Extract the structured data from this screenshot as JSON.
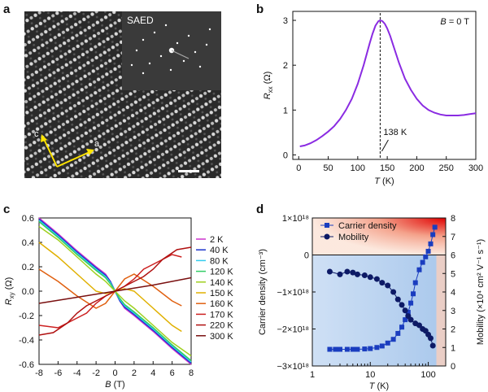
{
  "panels": {
    "a": "a",
    "b": "b",
    "c": "c",
    "d": "d"
  },
  "panel_a": {
    "inset_label": "SAED",
    "arrow_labels": [
      "c",
      "a"
    ]
  },
  "chart_data": [
    {
      "id": "b",
      "type": "line",
      "xlabel_italic": "T",
      "xlabel_rest": " (K)",
      "ylabel_italic": "R",
      "ylabel_sub": "xx",
      "ylabel_rest": " (Ω)",
      "xlim": [
        -10,
        300
      ],
      "ylim": [
        -0.1,
        3.2
      ],
      "xticks": [
        0,
        50,
        100,
        150,
        200,
        250,
        300
      ],
      "yticks": [
        0,
        1,
        2,
        3
      ],
      "annotation_b_italic": "B",
      "annotation_b_rest": " = 0 T",
      "annotation_t": "138 K",
      "vline_x": 138,
      "color": "#8a2be2",
      "series": [
        {
          "name": "Rxx",
          "x": [
            2,
            10,
            20,
            30,
            40,
            50,
            60,
            70,
            80,
            90,
            100,
            110,
            120,
            125,
            130,
            135,
            138,
            142,
            146,
            150,
            155,
            160,
            170,
            180,
            190,
            200,
            210,
            220,
            230,
            240,
            250,
            260,
            270,
            280,
            290,
            300
          ],
          "y": [
            0.19,
            0.21,
            0.26,
            0.33,
            0.42,
            0.52,
            0.64,
            0.8,
            1.0,
            1.25,
            1.58,
            2.0,
            2.48,
            2.7,
            2.88,
            2.98,
            3.0,
            2.98,
            2.92,
            2.82,
            2.65,
            2.45,
            2.05,
            1.7,
            1.45,
            1.25,
            1.1,
            1.0,
            0.94,
            0.9,
            0.88,
            0.88,
            0.88,
            0.89,
            0.91,
            0.93
          ]
        }
      ]
    },
    {
      "id": "c",
      "type": "line",
      "xlabel_italic": "B",
      "xlabel_rest": " (T)",
      "ylabel_italic": "R",
      "ylabel_sub": "xy",
      "ylabel_rest": " (Ω)",
      "xlim": [
        -8,
        8
      ],
      "ylim": [
        -0.6,
        0.6
      ],
      "xticks": [
        -8,
        -6,
        -4,
        -2,
        0,
        2,
        4,
        6,
        8
      ],
      "ytick_labels": [
        "0.6",
        "0.4",
        "0.2",
        "0.0",
        "-0.2",
        "-0.4",
        "-0.6"
      ],
      "series": [
        {
          "name": "2 K",
          "color": "#cc33cc",
          "x": [
            -8,
            -6,
            -4,
            -2,
            -1,
            -0.5,
            0,
            0.5,
            1,
            2,
            4,
            6,
            8
          ],
          "y": [
            0.6,
            0.47,
            0.33,
            0.2,
            0.14,
            0.08,
            0.0,
            -0.08,
            -0.14,
            -0.2,
            -0.33,
            -0.47,
            -0.6
          ]
        },
        {
          "name": "40 K",
          "color": "#1a33cc",
          "x": [
            -8,
            -6,
            -4,
            -2,
            -1,
            -0.5,
            0,
            0.5,
            1,
            2,
            4,
            6,
            8
          ],
          "y": [
            0.59,
            0.46,
            0.32,
            0.19,
            0.13,
            0.08,
            0.0,
            -0.08,
            -0.13,
            -0.19,
            -0.32,
            -0.46,
            -0.59
          ]
        },
        {
          "name": "80 K",
          "color": "#33ccee",
          "x": [
            -8,
            -6,
            -4,
            -2,
            -1,
            -0.5,
            0,
            0.5,
            1,
            2,
            4,
            6,
            8
          ],
          "y": [
            0.58,
            0.45,
            0.31,
            0.18,
            0.12,
            0.07,
            0.0,
            -0.07,
            -0.12,
            -0.18,
            -0.31,
            -0.45,
            -0.58
          ]
        },
        {
          "name": "120 K",
          "color": "#33cc66",
          "x": [
            -8,
            -6,
            -4,
            -2,
            -1,
            -0.5,
            0,
            0.5,
            1,
            2,
            4,
            6,
            8
          ],
          "y": [
            0.57,
            0.44,
            0.3,
            0.17,
            0.11,
            0.06,
            0.0,
            -0.06,
            -0.11,
            -0.17,
            -0.3,
            -0.44,
            -0.57
          ]
        },
        {
          "name": "140 K",
          "color": "#a0d020",
          "x": [
            -8,
            -6,
            -4,
            -2,
            -1,
            0,
            1,
            2,
            4,
            6,
            8
          ],
          "y": [
            0.53,
            0.42,
            0.28,
            0.14,
            0.08,
            0.0,
            -0.08,
            -0.14,
            -0.28,
            -0.42,
            -0.53
          ]
        },
        {
          "name": "150 K",
          "color": "#e0b000",
          "x": [
            -8,
            -6,
            -4,
            -2,
            -1,
            0,
            1,
            2,
            4,
            6,
            7
          ],
          "y": [
            0.4,
            0.28,
            0.14,
            0.0,
            -0.02,
            0.0,
            0.02,
            0.0,
            -0.14,
            -0.28,
            -0.33
          ]
        },
        {
          "name": "160 K",
          "color": "#e06010",
          "x": [
            -8,
            -6,
            -4,
            -2,
            -1,
            0,
            1,
            2,
            4,
            6,
            7
          ],
          "y": [
            0.18,
            0.08,
            -0.04,
            -0.14,
            -0.1,
            0.0,
            0.1,
            0.14,
            0.04,
            -0.08,
            -0.12
          ]
        },
        {
          "name": "170 K",
          "color": "#cc2020",
          "x": [
            -8,
            -6,
            -4,
            -3,
            -2,
            -1,
            0,
            1,
            2,
            3,
            4,
            6,
            7
          ],
          "y": [
            -0.28,
            -0.3,
            -0.22,
            -0.18,
            -0.1,
            -0.04,
            0.0,
            0.04,
            0.1,
            0.18,
            0.22,
            0.3,
            0.28
          ]
        },
        {
          "name": "220 K",
          "color": "#b01010",
          "x": [
            -8,
            -6.5,
            -5,
            -4,
            -3,
            -2,
            -1,
            0,
            1,
            2,
            3,
            4,
            5,
            6.5,
            8
          ],
          "y": [
            -0.36,
            -0.34,
            -0.26,
            -0.18,
            -0.12,
            -0.08,
            -0.04,
            0.0,
            0.04,
            0.08,
            0.12,
            0.18,
            0.26,
            0.34,
            0.36
          ]
        },
        {
          "name": "300 K",
          "color": "#7a1010",
          "x": [
            -8,
            -4,
            0,
            4,
            8
          ],
          "y": [
            -0.1,
            -0.05,
            0.0,
            0.05,
            0.11
          ]
        }
      ]
    },
    {
      "id": "d",
      "type": "line",
      "xscale": "log",
      "xlabel_italic": "T",
      "xlabel_rest": " (K)",
      "xlim": [
        1,
        200
      ],
      "xtick_labels": [
        "1",
        "10",
        "100"
      ],
      "ylabel_left": "Carrier density (cm⁻³)",
      "ylim_left": [
        -3e+18,
        1e+18
      ],
      "ytick_labels_left": [
        "1×10¹⁸",
        "0",
        "−1×10¹⁸",
        "−2×10¹⁸",
        "−3×10¹⁸"
      ],
      "ylabel_right": "Mobility (×10⁴ cm² V⁻¹ s⁻¹)",
      "ylim_right": [
        0,
        8
      ],
      "ytick_labels_right": [
        "8",
        "7",
        "6",
        "5",
        "4",
        "3",
        "2",
        "1",
        "0"
      ],
      "series": [
        {
          "name": "Carrier density",
          "axis": "left",
          "marker": "square",
          "color": "#1a3dbf",
          "x": [
            2,
            2.5,
            3,
            4,
            5,
            6,
            8,
            10,
            13,
            16,
            20,
            25,
            30,
            35,
            40,
            45,
            50,
            55,
            60,
            70,
            80,
            90,
            100,
            110,
            120,
            130
          ],
          "y": [
            -2.55e+18,
            -2.55e+18,
            -2.55e+18,
            -2.55e+18,
            -2.55e+18,
            -2.55e+18,
            -2.54e+18,
            -2.53e+18,
            -2.5e+18,
            -2.46e+18,
            -2.38e+18,
            -2.28e+18,
            -2.12e+18,
            -1.95e+18,
            -1.75e+18,
            -1.55e+18,
            -1.3e+18,
            -1.05e+18,
            -7.5e+17,
            -4e+17,
            -2e+17,
            -5e+16,
            1e+17,
            3e+17,
            5.5e+17,
            7.5e+17
          ]
        },
        {
          "name": "Mobility",
          "axis": "right",
          "marker": "circle",
          "color": "#0d1a66",
          "x": [
            2,
            3,
            4,
            5,
            6,
            8,
            10,
            13,
            16,
            20,
            25,
            30,
            35,
            40,
            45,
            50,
            60,
            70,
            80,
            90,
            100,
            110,
            120
          ],
          "y": [
            5.1,
            4.95,
            5.1,
            5.05,
            4.95,
            4.9,
            4.8,
            4.7,
            4.5,
            4.35,
            4.0,
            3.6,
            3.3,
            3.0,
            2.7,
            2.5,
            2.3,
            2.2,
            2.0,
            1.9,
            1.7,
            1.5,
            1.1
          ]
        }
      ]
    }
  ]
}
